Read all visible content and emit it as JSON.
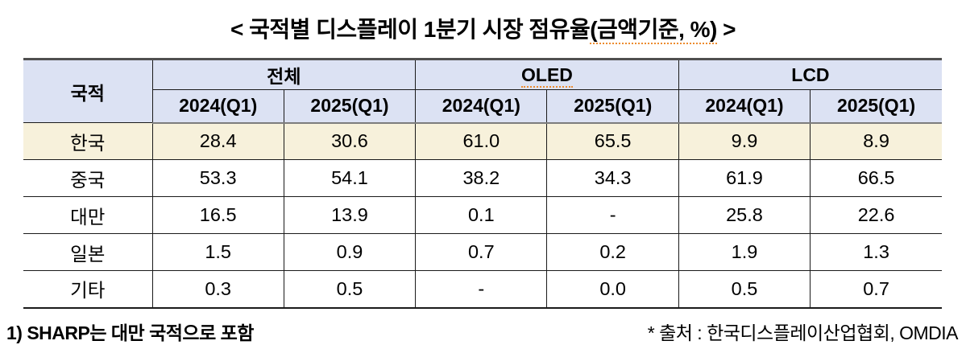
{
  "title": {
    "prefix": "< 국적별 디스플레이 1분기 시장 점유율",
    "emphasis": "(금액기준, %)",
    "suffix": " >"
  },
  "table": {
    "corner_header": "국적",
    "groups": [
      {
        "label": "전체"
      },
      {
        "label": "OLED"
      },
      {
        "label": "LCD"
      }
    ],
    "subheaders": [
      "2024(Q1)",
      "2025(Q1)",
      "2024(Q1)",
      "2025(Q1)",
      "2024(Q1)",
      "2025(Q1)"
    ],
    "rows": [
      {
        "label": "한국",
        "highlighted": true,
        "values": [
          "28.4",
          "30.6",
          "61.0",
          "65.5",
          "9.9",
          "8.9"
        ]
      },
      {
        "label": "중국",
        "highlighted": false,
        "values": [
          "53.3",
          "54.1",
          "38.2",
          "34.3",
          "61.9",
          "66.5"
        ]
      },
      {
        "label": "대만",
        "highlighted": false,
        "values": [
          "16.5",
          "13.9",
          "0.1",
          "-",
          "25.8",
          "22.6"
        ]
      },
      {
        "label": "일본",
        "highlighted": false,
        "values": [
          "1.5",
          "0.9",
          "0.7",
          "0.2",
          "1.9",
          "1.3"
        ]
      },
      {
        "label": "기타",
        "highlighted": false,
        "values": [
          "0.3",
          "0.5",
          "-",
          "0.0",
          "0.5",
          "0.7"
        ]
      }
    ]
  },
  "footnotes": {
    "left": "1) SHARP는 대만 국적으로 포함",
    "right": "* 출처 : 한국디스플레이산업협회, OMDIA"
  },
  "colors": {
    "header_bg": "#dce2f3",
    "highlight_row_bg": "#f7f1db",
    "spellcheck_underline": "#ed8b2f",
    "border": "#1a1a1a",
    "top_border": "#4f4f4f",
    "header_separator": "#7d7d7d"
  },
  "chart_data": {
    "type": "table",
    "title": "< 국적별 디스플레이 1분기 시장 점유율(금액기준, %) >",
    "column_groups": [
      "전체",
      "OLED",
      "LCD"
    ],
    "columns": [
      "국적",
      "전체 2024(Q1)",
      "전체 2025(Q1)",
      "OLED 2024(Q1)",
      "OLED 2025(Q1)",
      "LCD 2024(Q1)",
      "LCD 2025(Q1)"
    ],
    "rows": [
      [
        "한국",
        28.4,
        30.6,
        61.0,
        65.5,
        9.9,
        8.9
      ],
      [
        "중국",
        53.3,
        54.1,
        38.2,
        34.3,
        61.9,
        66.5
      ],
      [
        "대만",
        16.5,
        13.9,
        0.1,
        null,
        25.8,
        22.6
      ],
      [
        "일본",
        1.5,
        0.9,
        0.7,
        0.2,
        1.9,
        1.3
      ],
      [
        "기타",
        0.3,
        0.5,
        null,
        0.0,
        0.5,
        0.7
      ]
    ],
    "notes": [
      "1) SHARP는 대만 국적으로 포함",
      "* 출처 : 한국디스플레이산업협회, OMDIA"
    ]
  }
}
